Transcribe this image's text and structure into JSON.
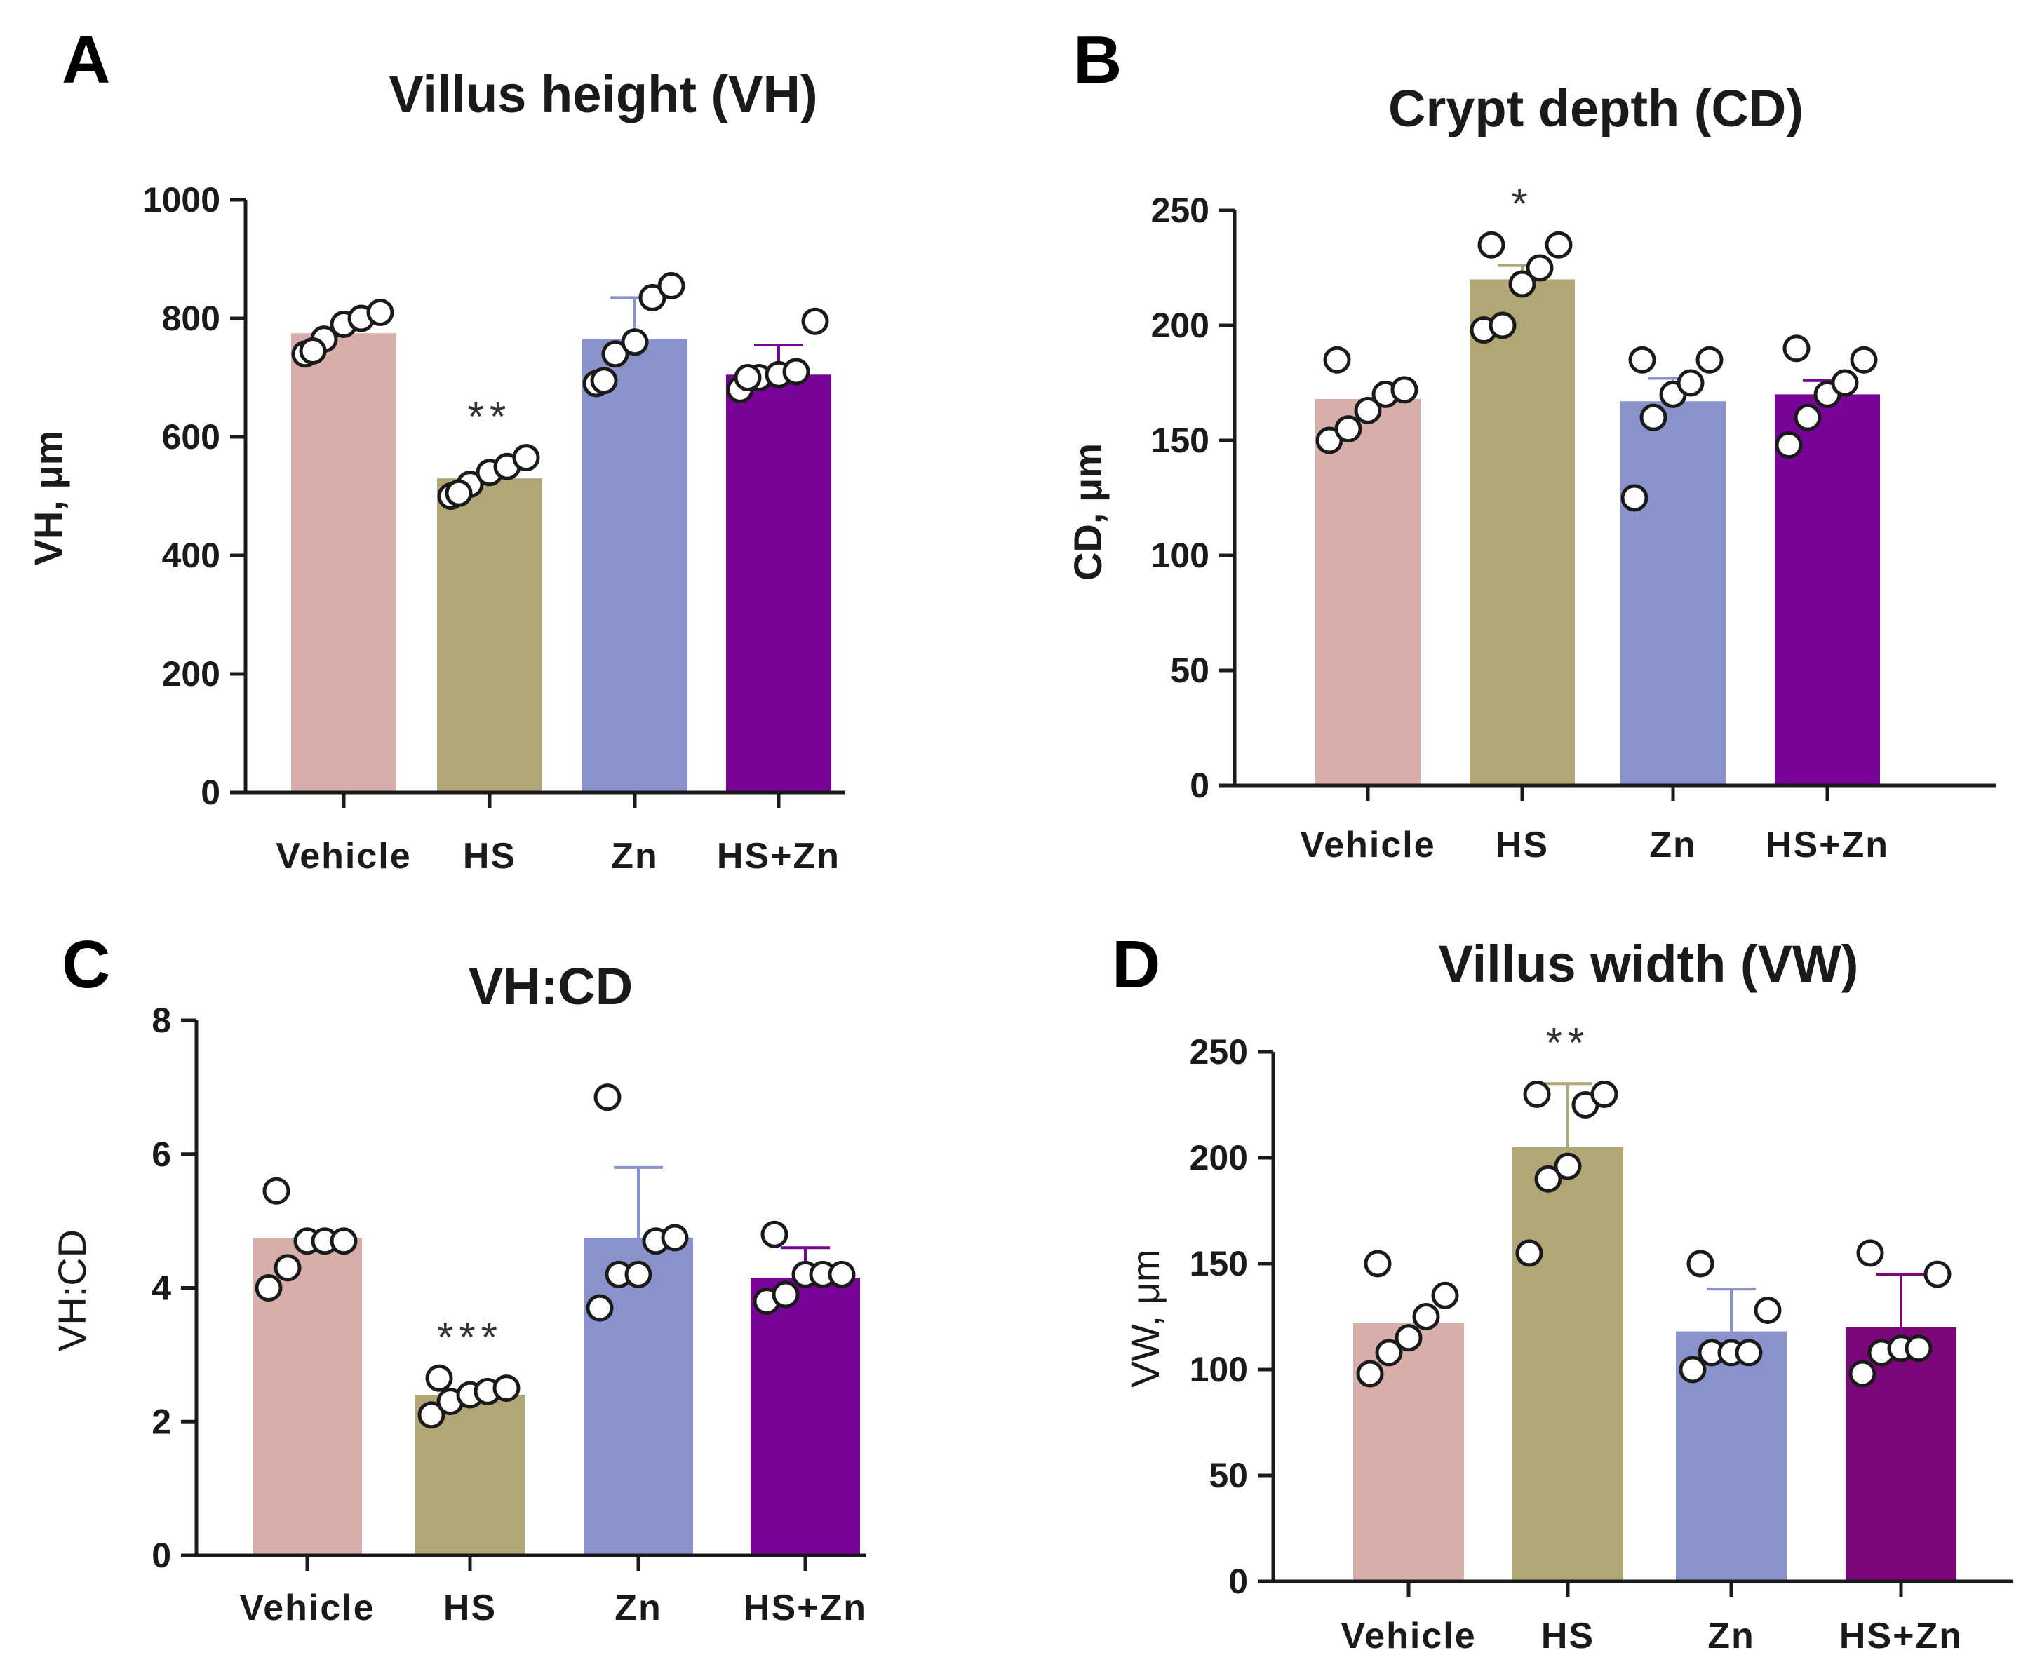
{
  "colors": {
    "Vehicle": "#d8aeab",
    "HS": "#b1a675",
    "Zn": "#8a92cb",
    "HS+Zn": "#770497",
    "HS+Zn_alt": "#7a0778"
  },
  "chart_data": [
    {
      "letter": "A",
      "type": "bar",
      "title": "Villus height (VH)",
      "ylabel": "VH, μm",
      "ylim": [
        0,
        1000
      ],
      "yticks": [
        0,
        200,
        400,
        600,
        800,
        1000
      ],
      "categories": [
        "Vehicle",
        "HS",
        "Zn",
        "HS+Zn"
      ],
      "values": [
        775,
        530,
        765,
        705
      ],
      "errors": [
        0,
        0,
        70,
        50
      ],
      "significance": [
        "",
        "**",
        "",
        ""
      ],
      "points": [
        [
          740,
          765,
          790,
          800,
          810,
          745
        ],
        [
          500,
          520,
          540,
          550,
          565,
          505
        ],
        [
          690,
          740,
          760,
          835,
          855,
          695
        ],
        [
          680,
          700,
          705,
          710,
          795,
          700
        ]
      ]
    },
    {
      "letter": "B",
      "type": "bar",
      "title": "Crypt depth (CD)",
      "ylabel": "CD, μm",
      "ylim": [
        0,
        250
      ],
      "yticks": [
        0,
        50,
        100,
        150,
        200,
        250
      ],
      "categories": [
        "Vehicle",
        "HS",
        "Zn",
        "HS+Zn"
      ],
      "values": [
        168,
        220,
        167,
        170
      ],
      "errors": [
        0,
        6,
        10,
        6
      ],
      "significance": [
        "",
        "*",
        "",
        ""
      ],
      "points": [
        [
          150,
          155,
          163,
          170,
          172,
          185
        ],
        [
          198,
          200,
          218,
          225,
          235,
          235
        ],
        [
          125,
          160,
          170,
          175,
          185,
          185
        ],
        [
          148,
          160,
          170,
          175,
          185,
          190
        ]
      ]
    },
    {
      "letter": "C",
      "type": "bar",
      "title": "VH:CD",
      "ylabel": "VH:CD",
      "ylim": [
        0,
        8
      ],
      "yticks": [
        0,
        2,
        4,
        6,
        8
      ],
      "categories": [
        "Vehicle",
        "HS",
        "Zn",
        "HS+Zn"
      ],
      "values": [
        4.75,
        2.4,
        4.75,
        4.15
      ],
      "errors": [
        0,
        0,
        1.05,
        0.45
      ],
      "significance": [
        "",
        "***",
        "",
        ""
      ],
      "points": [
        [
          4.0,
          4.3,
          4.7,
          4.7,
          4.7,
          5.45
        ],
        [
          2.1,
          2.3,
          2.4,
          2.45,
          2.5,
          2.65
        ],
        [
          3.7,
          4.2,
          4.2,
          4.7,
          4.75,
          6.85
        ],
        [
          3.8,
          3.9,
          4.2,
          4.2,
          4.2,
          4.8
        ]
      ]
    },
    {
      "letter": "D",
      "type": "bar",
      "title": "Villus width (VW)",
      "ylabel": "VW, μm",
      "ylim": [
        0,
        250
      ],
      "yticks": [
        0,
        50,
        100,
        150,
        200,
        250
      ],
      "categories": [
        "Vehicle",
        "HS",
        "Zn",
        "HS+Zn"
      ],
      "values": [
        122,
        205,
        118,
        120
      ],
      "errors": [
        0,
        30,
        20,
        25
      ],
      "significance": [
        "",
        "**",
        "",
        ""
      ],
      "points": [
        [
          98,
          108,
          115,
          125,
          135,
          150
        ],
        [
          155,
          190,
          196,
          225,
          230,
          230
        ],
        [
          100,
          108,
          108,
          108,
          128,
          150
        ],
        [
          98,
          108,
          110,
          110,
          145,
          155
        ]
      ]
    }
  ]
}
